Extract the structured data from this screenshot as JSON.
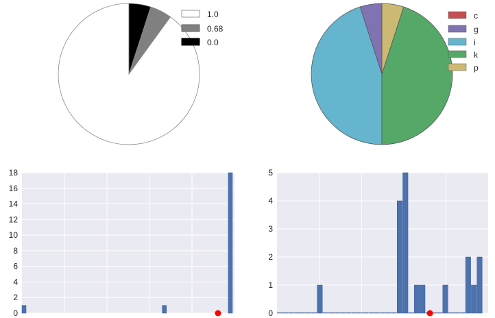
{
  "chart_data": [
    {
      "type": "pie",
      "title": "",
      "labels": [
        "1.0",
        "0.68",
        "0.0"
      ],
      "values": [
        90,
        5,
        5
      ],
      "colors": [
        "#ffffff",
        "#808080",
        "#000000"
      ],
      "legend": "top-right"
    },
    {
      "type": "pie",
      "title": "",
      "labels": [
        "c",
        "g",
        "i",
        "k",
        "p"
      ],
      "values": [
        0,
        5,
        45,
        45,
        5
      ],
      "colors": [
        "#c44e52",
        "#8172b2",
        "#64b5cd",
        "#55a868",
        "#ccb974"
      ],
      "legend": "top-right"
    },
    {
      "type": "bar",
      "title": "",
      "xlabel": "",
      "ylabel": "",
      "ylim": [
        0,
        18
      ],
      "yticks": [
        0,
        2,
        4,
        6,
        8,
        10,
        12,
        14,
        16,
        18
      ],
      "grid": true,
      "bar_color": "#4c72b0",
      "marker_color": "#ff0000",
      "bars": [
        {
          "x": 0.0,
          "value": 1
        },
        {
          "x": 0.68,
          "value": 1
        },
        {
          "x": 1.0,
          "value": 18
        }
      ],
      "xlim": [
        -0.01,
        1.02
      ],
      "bar_width": 0.02,
      "marker": {
        "x": 0.94,
        "y": 0
      }
    },
    {
      "type": "bar",
      "title": "",
      "xlabel": "",
      "ylabel": "",
      "ylim": [
        0,
        5
      ],
      "yticks": [
        0,
        1,
        2,
        3,
        4,
        5
      ],
      "grid": true,
      "bar_color": "#4c72b0",
      "marker_color": "#ff0000",
      "bars": [
        {
          "x": 1,
          "value": 0
        },
        {
          "x": 2,
          "value": 0
        },
        {
          "x": 3,
          "value": 0
        },
        {
          "x": 4,
          "value": 0
        },
        {
          "x": 5,
          "value": 0
        },
        {
          "x": 6,
          "value": 0
        },
        {
          "x": 7,
          "value": 0
        },
        {
          "x": 8,
          "value": 1
        },
        {
          "x": 9,
          "value": 0
        },
        {
          "x": 10,
          "value": 0
        },
        {
          "x": 11,
          "value": 0
        },
        {
          "x": 12,
          "value": 0
        },
        {
          "x": 13,
          "value": 0
        },
        {
          "x": 14,
          "value": 0
        },
        {
          "x": 15,
          "value": 0
        },
        {
          "x": 16,
          "value": 0
        },
        {
          "x": 17,
          "value": 0
        },
        {
          "x": 18,
          "value": 0
        },
        {
          "x": 19,
          "value": 0
        },
        {
          "x": 20,
          "value": 0
        },
        {
          "x": 21,
          "value": 0
        },
        {
          "x": 22,
          "value": 4
        },
        {
          "x": 23,
          "value": 5
        },
        {
          "x": 24,
          "value": 0
        },
        {
          "x": 25,
          "value": 1
        },
        {
          "x": 26,
          "value": 1
        },
        {
          "x": 27,
          "value": 0
        },
        {
          "x": 28,
          "value": 0
        },
        {
          "x": 29,
          "value": 0
        },
        {
          "x": 30,
          "value": 1
        },
        {
          "x": 31,
          "value": 0
        },
        {
          "x": 32,
          "value": 0
        },
        {
          "x": 33,
          "value": 0
        },
        {
          "x": 34,
          "value": 2
        },
        {
          "x": 35,
          "value": 1
        },
        {
          "x": 36,
          "value": 2
        }
      ],
      "xlim": [
        0.5,
        37.5
      ],
      "bar_width": 0.9,
      "marker": {
        "x": 27.3,
        "y": 0
      }
    }
  ]
}
